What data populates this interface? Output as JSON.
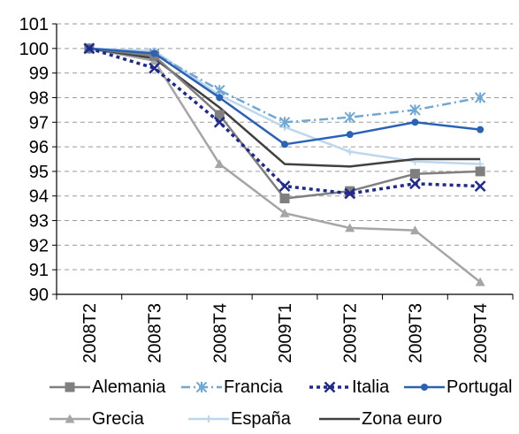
{
  "chart_data": {
    "type": "line",
    "title": "",
    "xlabel": "",
    "ylabel": "",
    "categories": [
      "2008T2",
      "2008T3",
      "2008T4",
      "2009T1",
      "2009T2",
      "2009T3",
      "2009T4"
    ],
    "ylim": [
      90,
      101
    ],
    "yticks": [
      90,
      91,
      92,
      93,
      94,
      95,
      96,
      97,
      98,
      99,
      100,
      101
    ],
    "grid": "horizontal-dashed",
    "legend_position": "bottom",
    "series": [
      {
        "name": "Alemania",
        "color": "#7f7f7f",
        "dash": "none",
        "marker": "square",
        "values": [
          100,
          99.7,
          97.3,
          93.9,
          94.2,
          94.9,
          95.0
        ]
      },
      {
        "name": "Francia",
        "color": "#6fa8d6",
        "dash": "dashdot",
        "marker": "star",
        "values": [
          100,
          99.8,
          98.3,
          97.0,
          97.2,
          97.5,
          98.0
        ]
      },
      {
        "name": "Italia",
        "color": "#1f2a8c",
        "dash": "dotted",
        "marker": "x",
        "values": [
          100,
          99.2,
          97.0,
          94.4,
          94.1,
          94.5,
          94.4
        ]
      },
      {
        "name": "Portugal",
        "color": "#2a62b6",
        "dash": "none",
        "marker": "circle",
        "values": [
          100,
          99.8,
          98.0,
          96.1,
          96.5,
          97.0,
          96.7
        ]
      },
      {
        "name": "Grecia",
        "color": "#a6a6a6",
        "dash": "none",
        "marker": "triangle",
        "values": [
          100,
          99.5,
          95.3,
          93.3,
          92.7,
          92.6,
          90.5
        ]
      },
      {
        "name": "España",
        "color": "#bdd7ee",
        "dash": "none",
        "marker": "plus",
        "values": [
          100,
          99.9,
          98.1,
          96.8,
          95.8,
          95.4,
          95.3
        ]
      },
      {
        "name": "Zona euro",
        "color": "#404040",
        "dash": "none",
        "marker": "none",
        "values": [
          100,
          99.6,
          97.6,
          95.3,
          95.2,
          95.5,
          95.5
        ]
      }
    ]
  }
}
